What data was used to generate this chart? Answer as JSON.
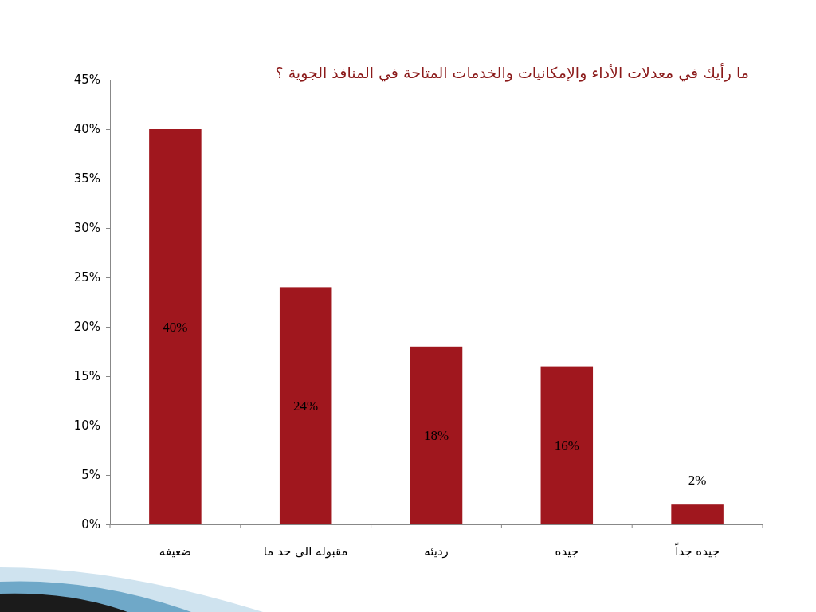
{
  "chart_data": {
    "type": "bar",
    "title": "ما رأيك في معدلات الأداء والإمكانيات والخدمات المتاحة في المنافذ الجوية ؟",
    "categories": [
      "ضعيفه",
      "مقبوله الى حد ما",
      "رديئه",
      "جيده",
      "جيده جداً"
    ],
    "values": [
      40,
      24,
      18,
      16,
      2
    ],
    "value_labels": [
      "40%",
      "24%",
      "18%",
      "16%",
      "2%"
    ],
    "color": "#a0171e",
    "ylim": [
      0,
      45
    ],
    "yticks": [
      {
        "value": 0,
        "label": "0%"
      },
      {
        "value": 5,
        "label": "5%"
      },
      {
        "value": 10,
        "label": "10%"
      },
      {
        "value": 15,
        "label": "15%"
      },
      {
        "value": 20,
        "label": "20%"
      },
      {
        "value": 25,
        "label": "25%"
      },
      {
        "value": 30,
        "label": "30%"
      },
      {
        "value": 35,
        "label": "35%"
      },
      {
        "value": 40,
        "label": "40%"
      },
      {
        "value": 45,
        "label": "45%"
      }
    ],
    "grid": false
  }
}
